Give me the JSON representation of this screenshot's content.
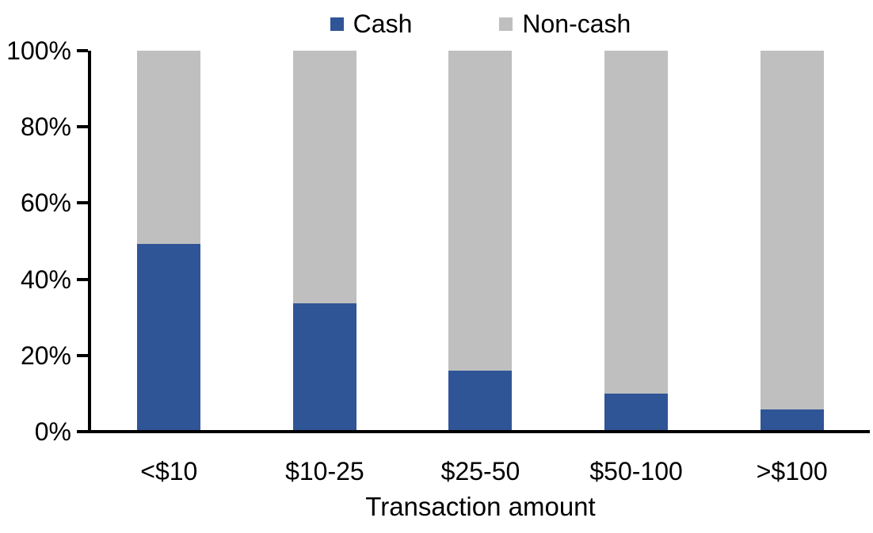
{
  "chart_data": {
    "type": "bar",
    "variant": "stacked-100-percent",
    "title": "",
    "xlabel": "Transaction amount",
    "ylabel": "",
    "categories": [
      "<$10",
      "$10-25",
      "$25-50",
      "$50-100",
      ">$100"
    ],
    "series": [
      {
        "name": "Cash",
        "color": "#2F5597",
        "values": [
          49,
          33.5,
          15.7,
          9.6,
          5.5
        ]
      },
      {
        "name": "Non-cash",
        "color": "#BFBFBF",
        "values": [
          51,
          66.5,
          84.3,
          90.4,
          94.5
        ]
      }
    ],
    "ylim": [
      0,
      100
    ],
    "yticks": [
      "0%",
      "20%",
      "40%",
      "60%",
      "80%",
      "100%"
    ],
    "grid": false,
    "legend_position": "top-center",
    "axis_color": "#000000",
    "background_color": "#FFFFFF"
  }
}
